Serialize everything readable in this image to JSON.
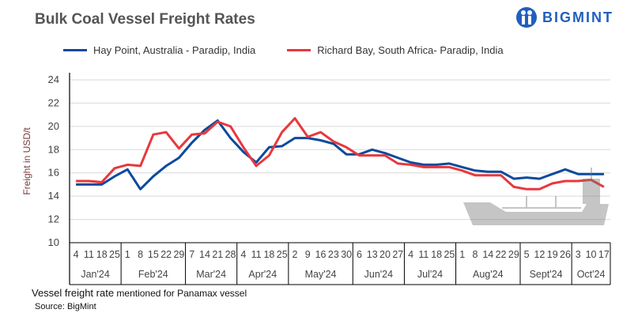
{
  "brand": {
    "name": "BIGMINT",
    "color": "#1f5fbf"
  },
  "chart_data": {
    "type": "line",
    "title": "Bulk Coal Vessel Freight Rates",
    "xlabel": "",
    "ylabel": "Freight  in USD/t",
    "ylim": [
      10,
      24
    ],
    "yticks": [
      10,
      12,
      14,
      16,
      18,
      20,
      22,
      24
    ],
    "grid": true,
    "legend": "top",
    "months": [
      {
        "label": "Jan'24",
        "days": [
          "4",
          "11",
          "18",
          "25"
        ]
      },
      {
        "label": "Feb'24",
        "days": [
          "1",
          "8",
          "15",
          "22",
          "29"
        ]
      },
      {
        "label": "Mar'24",
        "days": [
          "7",
          "14",
          "21",
          "28"
        ]
      },
      {
        "label": "Apr'24",
        "days": [
          "4",
          "11",
          "18",
          "25"
        ]
      },
      {
        "label": "May'24",
        "days": [
          "2",
          "9",
          "16",
          "23",
          "30"
        ]
      },
      {
        "label": "Jun'24",
        "days": [
          "6",
          "13",
          "20",
          "27"
        ]
      },
      {
        "label": "Jul'24",
        "days": [
          "4",
          "11",
          "18",
          "25"
        ]
      },
      {
        "label": "Aug'24",
        "days": [
          "1",
          "8",
          "14",
          "22",
          "29"
        ]
      },
      {
        "label": "Sept'24",
        "days": [
          "5",
          "12",
          "19",
          "26"
        ]
      },
      {
        "label": "Oct'24",
        "days": [
          "3",
          "10",
          "17"
        ]
      }
    ],
    "series": [
      {
        "name": "Hay Point, Australia - Paradip, India",
        "color": "#0b4a9c",
        "values": [
          15.0,
          15.0,
          15.0,
          15.7,
          16.3,
          14.6,
          15.7,
          16.6,
          17.3,
          18.6,
          19.7,
          20.5,
          19.0,
          17.8,
          16.9,
          18.2,
          18.3,
          19.0,
          19.0,
          18.8,
          18.5,
          17.6,
          17.6,
          18.0,
          17.7,
          17.3,
          16.9,
          16.7,
          16.7,
          16.8,
          16.5,
          16.2,
          16.1,
          16.1,
          15.5,
          15.6,
          15.5,
          15.9,
          16.3,
          15.9,
          15.9,
          15.9
        ]
      },
      {
        "name": "Richard Bay, South Africa- Paradip, India",
        "color": "#e8383d",
        "values": [
          15.3,
          15.3,
          15.2,
          16.4,
          16.7,
          16.6,
          19.3,
          19.5,
          18.1,
          19.3,
          19.4,
          20.4,
          20.0,
          18.2,
          16.6,
          17.5,
          19.5,
          20.7,
          19.1,
          19.5,
          18.7,
          18.2,
          17.5,
          17.5,
          17.5,
          16.8,
          16.7,
          16.5,
          16.5,
          16.5,
          16.2,
          15.8,
          15.8,
          15.8,
          14.8,
          14.6,
          14.6,
          15.1,
          15.3,
          15.3,
          15.4,
          14.8
        ]
      }
    ]
  },
  "footer": {
    "note_main": "Vessel freight rate",
    "note_small": " mentioned for Panamax  vessel",
    "source": "Source:  BigMint"
  }
}
